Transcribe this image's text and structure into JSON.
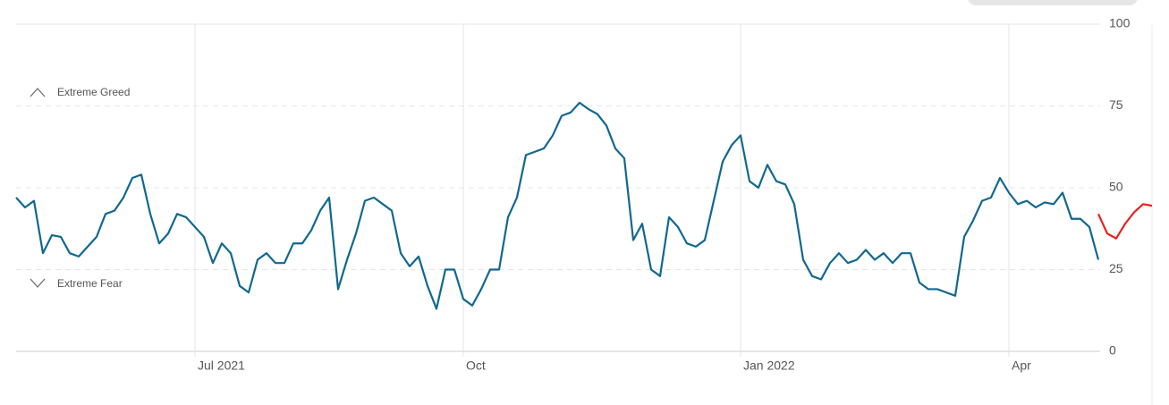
{
  "chart_data": {
    "type": "line",
    "annotations": [
      "Extreme Greed",
      "Extreme Fear"
    ],
    "categories": [
      null,
      null,
      null,
      null,
      null,
      null,
      null,
      null,
      null,
      null,
      null,
      null,
      null,
      null,
      null,
      null,
      null,
      null,
      null,
      null,
      "Jul 2021",
      null,
      null,
      null,
      null,
      null,
      null,
      null,
      null,
      null,
      null,
      null,
      null,
      null,
      null,
      null,
      null,
      null,
      null,
      null,
      null,
      null,
      null,
      null,
      null,
      null,
      null,
      null,
      null,
      null,
      "Oct",
      null,
      null,
      null,
      null,
      null,
      null,
      null,
      null,
      null,
      null,
      null,
      null,
      null,
      null,
      null,
      null,
      null,
      null,
      null,
      null,
      null,
      null,
      null,
      null,
      null,
      null,
      null,
      null,
      null,
      null,
      "Jan 2022",
      null,
      null,
      null,
      null,
      null,
      null,
      null,
      null,
      null,
      null,
      null,
      null,
      null,
      null,
      null,
      null,
      null,
      null,
      null,
      null,
      null,
      null,
      null,
      null,
      null,
      null,
      null,
      null,
      null,
      "Apr",
      null,
      null,
      null,
      null,
      null,
      null,
      null,
      null,
      null,
      null,
      null,
      null,
      null,
      null,
      null,
      null
    ],
    "series": [
      {
        "color": "#11688f",
        "values": [
          47,
          44,
          46,
          30,
          35.5,
          35,
          30,
          29,
          32,
          35,
          42,
          43,
          47,
          53,
          54,
          42,
          33,
          36,
          42,
          41,
          38,
          35,
          27,
          33,
          30,
          20,
          18,
          28,
          30,
          27,
          27,
          33,
          33,
          37,
          43,
          47,
          19,
          28,
          36,
          46,
          47,
          45,
          43,
          30,
          26,
          29,
          20,
          13,
          25,
          25,
          16,
          14,
          19,
          25,
          25,
          41,
          47,
          60,
          61,
          62,
          66,
          72,
          73,
          76,
          74,
          72.5,
          69,
          62,
          59,
          34,
          39,
          25,
          23,
          41,
          38,
          33,
          32,
          34,
          46,
          58,
          63,
          66,
          52,
          50,
          57,
          52,
          51,
          45,
          28,
          23,
          22,
          27,
          30,
          27,
          28,
          31,
          28,
          30,
          27,
          30,
          30,
          21,
          19,
          19,
          18,
          17,
          35,
          40,
          46,
          47,
          53,
          48.5,
          45,
          46,
          44,
          45.5,
          45,
          48.5,
          40.5,
          40.5,
          38,
          28,
          null,
          null,
          null,
          null,
          null,
          null
        ]
      },
      {
        "color": "#e8211f",
        "values": [
          null,
          null,
          null,
          null,
          null,
          null,
          null,
          null,
          null,
          null,
          null,
          null,
          null,
          null,
          null,
          null,
          null,
          null,
          null,
          null,
          null,
          null,
          null,
          null,
          null,
          null,
          null,
          null,
          null,
          null,
          null,
          null,
          null,
          null,
          null,
          null,
          null,
          null,
          null,
          null,
          null,
          null,
          null,
          null,
          null,
          null,
          null,
          null,
          null,
          null,
          null,
          null,
          null,
          null,
          null,
          null,
          null,
          null,
          null,
          null,
          null,
          null,
          null,
          null,
          null,
          null,
          null,
          null,
          null,
          null,
          null,
          null,
          null,
          null,
          null,
          null,
          null,
          null,
          null,
          null,
          null,
          null,
          null,
          null,
          null,
          null,
          null,
          null,
          null,
          null,
          null,
          null,
          null,
          null,
          null,
          null,
          null,
          null,
          null,
          null,
          null,
          null,
          null,
          null,
          null,
          null,
          null,
          null,
          null,
          null,
          null,
          null,
          null,
          null,
          null,
          null,
          null,
          null,
          null,
          null,
          null,
          42,
          36,
          34.5,
          39,
          42.5,
          45,
          44.5
        ]
      }
    ],
    "ylim": [
      0,
      100
    ],
    "yticks": [
      0,
      25,
      50,
      75,
      100
    ],
    "grid": true
  }
}
